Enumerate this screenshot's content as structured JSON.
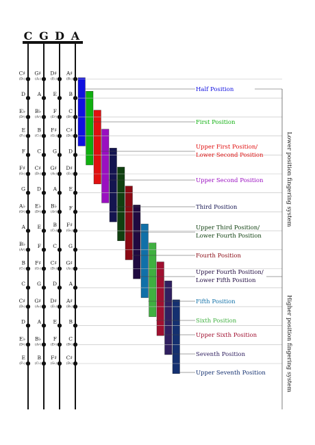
{
  "strings": [
    "C",
    "G",
    "D",
    "A"
  ],
  "notes": [
    [
      {
        "n": "C♯",
        "a": "(D♭)"
      },
      {
        "n": "G♯",
        "a": "(A♭)"
      },
      {
        "n": "D♯",
        "a": "(E♭)"
      },
      {
        "n": "A♯",
        "a": "(B♭)"
      }
    ],
    [
      {
        "n": "D",
        "a": ""
      },
      {
        "n": "A",
        "a": ""
      },
      {
        "n": "E",
        "a": ""
      },
      {
        "n": "B",
        "a": ""
      }
    ],
    [
      {
        "n": "E♭",
        "a": "(D♯)"
      },
      {
        "n": "B♭",
        "a": "(A♯)"
      },
      {
        "n": "F",
        "a": "(E♯)"
      },
      {
        "n": "C",
        "a": "(B♯)"
      }
    ],
    [
      {
        "n": "E",
        "a": "(F♭)"
      },
      {
        "n": "B",
        "a": "(C♭)"
      },
      {
        "n": "F♯",
        "a": "(G♭)"
      },
      {
        "n": "C♯",
        "a": "(D♭)"
      }
    ],
    [
      {
        "n": "F",
        "a": ""
      },
      {
        "n": "C",
        "a": ""
      },
      {
        "n": "G",
        "a": ""
      },
      {
        "n": "D",
        "a": ""
      }
    ],
    [
      {
        "n": "F♯",
        "a": "(G♭)"
      },
      {
        "n": "C♯",
        "a": "(D♭)"
      },
      {
        "n": "G♯",
        "a": "(A♭)"
      },
      {
        "n": "D♯",
        "a": "(E♭)"
      }
    ],
    [
      {
        "n": "G",
        "a": ""
      },
      {
        "n": "D",
        "a": ""
      },
      {
        "n": "A",
        "a": ""
      },
      {
        "n": "E",
        "a": ""
      }
    ],
    [
      {
        "n": "A♭",
        "a": "(G♯)"
      },
      {
        "n": "E♭",
        "a": "(D♯)"
      },
      {
        "n": "B♭",
        "a": "(A♯)"
      },
      {
        "n": "F",
        "a": ""
      }
    ],
    [
      {
        "n": "A",
        "a": ""
      },
      {
        "n": "E",
        "a": ""
      },
      {
        "n": "B",
        "a": "(C♭)"
      },
      {
        "n": "F♯",
        "a": "(G♭)"
      }
    ],
    [
      {
        "n": "B♭",
        "a": "(A♯)"
      },
      {
        "n": "F",
        "a": ""
      },
      {
        "n": "C",
        "a": ""
      },
      {
        "n": "G",
        "a": ""
      }
    ],
    [
      {
        "n": "B",
        "a": "(C♭)"
      },
      {
        "n": "F♯",
        "a": "(G♭)"
      },
      {
        "n": "C♯",
        "a": "(D♭)"
      },
      {
        "n": "G♯",
        "a": "(A♭)"
      }
    ],
    [
      {
        "n": "C",
        "a": ""
      },
      {
        "n": "G",
        "a": ""
      },
      {
        "n": "D",
        "a": ""
      },
      {
        "n": "A",
        "a": ""
      }
    ],
    [
      {
        "n": "C♯",
        "a": "(D♭)"
      },
      {
        "n": "G♯",
        "a": "(A♭)"
      },
      {
        "n": "D♯",
        "a": "(E♭)"
      },
      {
        "n": "A♯",
        "a": "(B♭)"
      }
    ],
    [
      {
        "n": "D",
        "a": ""
      },
      {
        "n": "A",
        "a": ""
      },
      {
        "n": "E",
        "a": ""
      },
      {
        "n": "B",
        "a": ""
      }
    ],
    [
      {
        "n": "E♭",
        "a": "(D♯)"
      },
      {
        "n": "B♭",
        "a": "(A♯)"
      },
      {
        "n": "F",
        "a": "(E♯)"
      },
      {
        "n": "C",
        "a": "(B♯)"
      }
    ],
    [
      {
        "n": "E",
        "a": "(F♭)"
      },
      {
        "n": "B",
        "a": "(C♭)"
      },
      {
        "n": "F♯",
        "a": "(G♭)"
      },
      {
        "n": "C♯",
        "a": "(D♭)"
      }
    ]
  ],
  "positions": [
    {
      "label": [
        "Half Position"
      ],
      "color": "#1010e0"
    },
    {
      "label": [
        "First Position"
      ],
      "color": "#10b010"
    },
    {
      "label": [
        "Upper First Position/",
        "Lower Second Position"
      ],
      "color": "#e01010"
    },
    {
      "label": [
        "Upper Second Position"
      ],
      "color": "#9a10c0"
    },
    {
      "label": [
        "Third Position"
      ],
      "color": "#141450"
    },
    {
      "label": [
        "Upper Third Position/",
        "Lower Fourth Position"
      ],
      "color": "#104010"
    },
    {
      "label": [
        "Fourth Position"
      ],
      "color": "#8a0a14"
    },
    {
      "label": [
        "Upper Fourth Position/",
        "Lower Fifth Position"
      ],
      "color": "#200a40"
    },
    {
      "label": [
        "Fifth Position"
      ],
      "color": "#1070a8"
    },
    {
      "label": [
        "Sixth Position"
      ],
      "color": "#40b040"
    },
    {
      "label": [
        "Upper Sixth Position"
      ],
      "color": "#a01030"
    },
    {
      "label": [
        "Seventh Position"
      ],
      "color": "#302060"
    },
    {
      "label": [
        "Upper Seventh Position"
      ],
      "color": "#143070"
    }
  ],
  "systems": {
    "lower": "Lower position fingering system",
    "higher": "Higher position fingering system"
  }
}
